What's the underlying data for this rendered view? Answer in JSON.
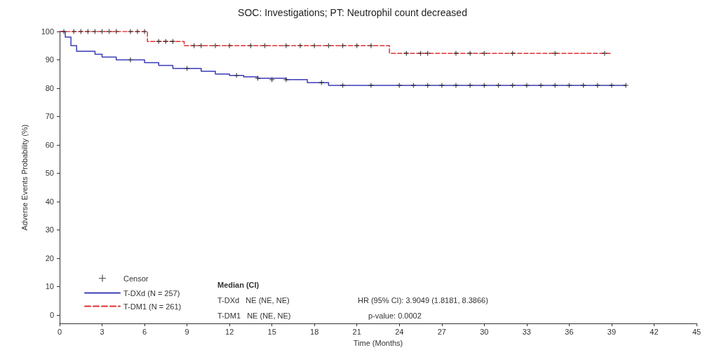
{
  "chart_data": {
    "type": "step",
    "title": "SOC: Investigations; PT: Neutrophil count decreased",
    "xlabel": "Time (Months)",
    "ylabel": "Adverse Events Probability (%)",
    "xlim": [
      0,
      45
    ],
    "xticks": [
      0,
      3,
      6,
      9,
      12,
      15,
      18,
      21,
      24,
      27,
      30,
      33,
      36,
      39,
      42,
      45
    ],
    "ylim": [
      -3,
      100
    ],
    "yticks": [
      0,
      10,
      20,
      30,
      40,
      50,
      60,
      70,
      80,
      90,
      100
    ],
    "grid": false,
    "legend": "bottom left",
    "marker": "none",
    "series": [
      {
        "name": "Censor",
        "type": "scatter",
        "marker": "cross",
        "color": "#222222",
        "x": [
          0.3,
          1,
          1.5,
          2,
          2.5,
          3,
          3.5,
          4,
          5,
          5.5,
          6,
          7,
          7.5,
          8,
          9.5,
          10,
          11,
          12,
          13.5,
          14.5,
          16,
          17,
          18,
          19,
          20,
          21,
          22,
          24.5,
          25.5,
          26,
          28,
          29,
          30,
          32,
          35,
          38.5,
          5,
          9,
          12.5,
          14,
          15,
          16,
          18.5,
          20,
          22,
          24,
          25,
          26,
          27,
          28,
          29,
          30,
          31,
          32,
          33,
          34,
          35,
          36,
          37,
          38,
          39,
          40
        ],
        "values": [
          100,
          100,
          100,
          100,
          100,
          100,
          100,
          100,
          100,
          100,
          100,
          96.5,
          96.5,
          96.5,
          95,
          95,
          95,
          95,
          95,
          95,
          95,
          95,
          95,
          95,
          95,
          95,
          95,
          92.3,
          92.3,
          92.3,
          92.3,
          92.3,
          92.3,
          92.3,
          92.3,
          92.3,
          90,
          87,
          84.5,
          83.5,
          83,
          83,
          82,
          81,
          81,
          81,
          81,
          81,
          81,
          81,
          81,
          81,
          81,
          81,
          81,
          81,
          81,
          81,
          81,
          81,
          81,
          81
        ]
      },
      {
        "name": "T-DXd (N = 257)",
        "color": "#3a3ab8",
        "line_style": "solid",
        "x": [
          0,
          0.4,
          0.8,
          1.2,
          2.5,
          3,
          4,
          6,
          7,
          8,
          10,
          11,
          12,
          13,
          14,
          16,
          17.5,
          19,
          40
        ],
        "values": [
          100,
          98,
          95,
          93,
          92,
          91,
          90,
          89,
          88,
          87,
          86,
          85,
          84.5,
          84,
          83.5,
          83,
          82,
          81,
          81
        ]
      },
      {
        "name": "T-DM1 (N = 261)",
        "color": "#e03030",
        "line_style": "dashed",
        "x": [
          0,
          6.2,
          8.8,
          23.3,
          38.9
        ],
        "values": [
          100,
          96.5,
          95,
          92.3,
          92.3
        ]
      }
    ],
    "annotations": [
      "Median (CI)",
      "T-DXd   NE (NE, NE)",
      "T-DM1   NE (NE, NE)",
      "HR (95% CI): 3.9049 (1.8181, 8.3866)",
      "p-value: 0.0002"
    ]
  }
}
